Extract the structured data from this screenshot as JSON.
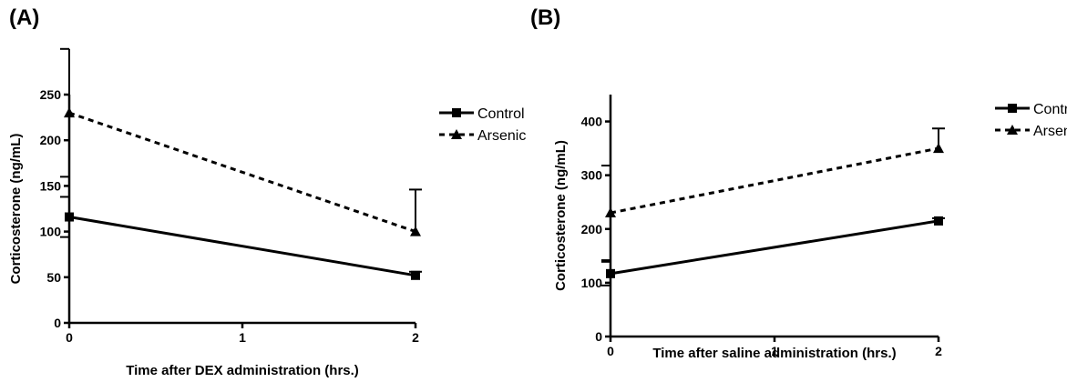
{
  "panels": {
    "a_label": "(A)",
    "b_label": "(B)"
  },
  "chart_data": [
    {
      "type": "line",
      "panel": "(A)",
      "xlabel": "Time after DEX administration (hrs.)",
      "ylabel": "Corticosterone (ng/mL)",
      "xlim": [
        0,
        2
      ],
      "ylim": [
        0,
        250
      ],
      "xticks": [
        0,
        1,
        2
      ],
      "yticks": [
        0,
        50,
        100,
        150,
        200,
        250
      ],
      "legend_position": "right",
      "series": [
        {
          "name": "Control",
          "style": "solid",
          "marker": "square",
          "color": "#000000",
          "x": [
            0,
            2
          ],
          "y": [
            116,
            52
          ],
          "err": [
            22,
            4
          ]
        },
        {
          "name": "Arsenic",
          "style": "dashed",
          "marker": "triangle",
          "color": "#000000",
          "x": [
            0,
            2
          ],
          "y": [
            230,
            100
          ],
          "err": [
            70,
            46
          ]
        }
      ]
    },
    {
      "type": "line",
      "panel": "(B)",
      "xlabel": "Time after saline administration (hrs.)",
      "ylabel": "Corticosterone (ng/mL)",
      "xlim": [
        0,
        2
      ],
      "ylim": [
        0,
        450
      ],
      "xticks": [
        0,
        1,
        2
      ],
      "yticks": [
        0,
        100,
        200,
        300,
        400
      ],
      "legend_position": "right",
      "series": [
        {
          "name": "Control",
          "style": "solid",
          "marker": "square",
          "color": "#000000",
          "x": [
            0,
            2
          ],
          "y": [
            117,
            215
          ],
          "err": [
            22,
            5
          ]
        },
        {
          "name": "Arsenic",
          "style": "dashed",
          "marker": "triangle",
          "color": "#000000",
          "x": [
            0,
            2
          ],
          "y": [
            230,
            350
          ],
          "err": [
            88,
            37
          ]
        }
      ]
    }
  ]
}
